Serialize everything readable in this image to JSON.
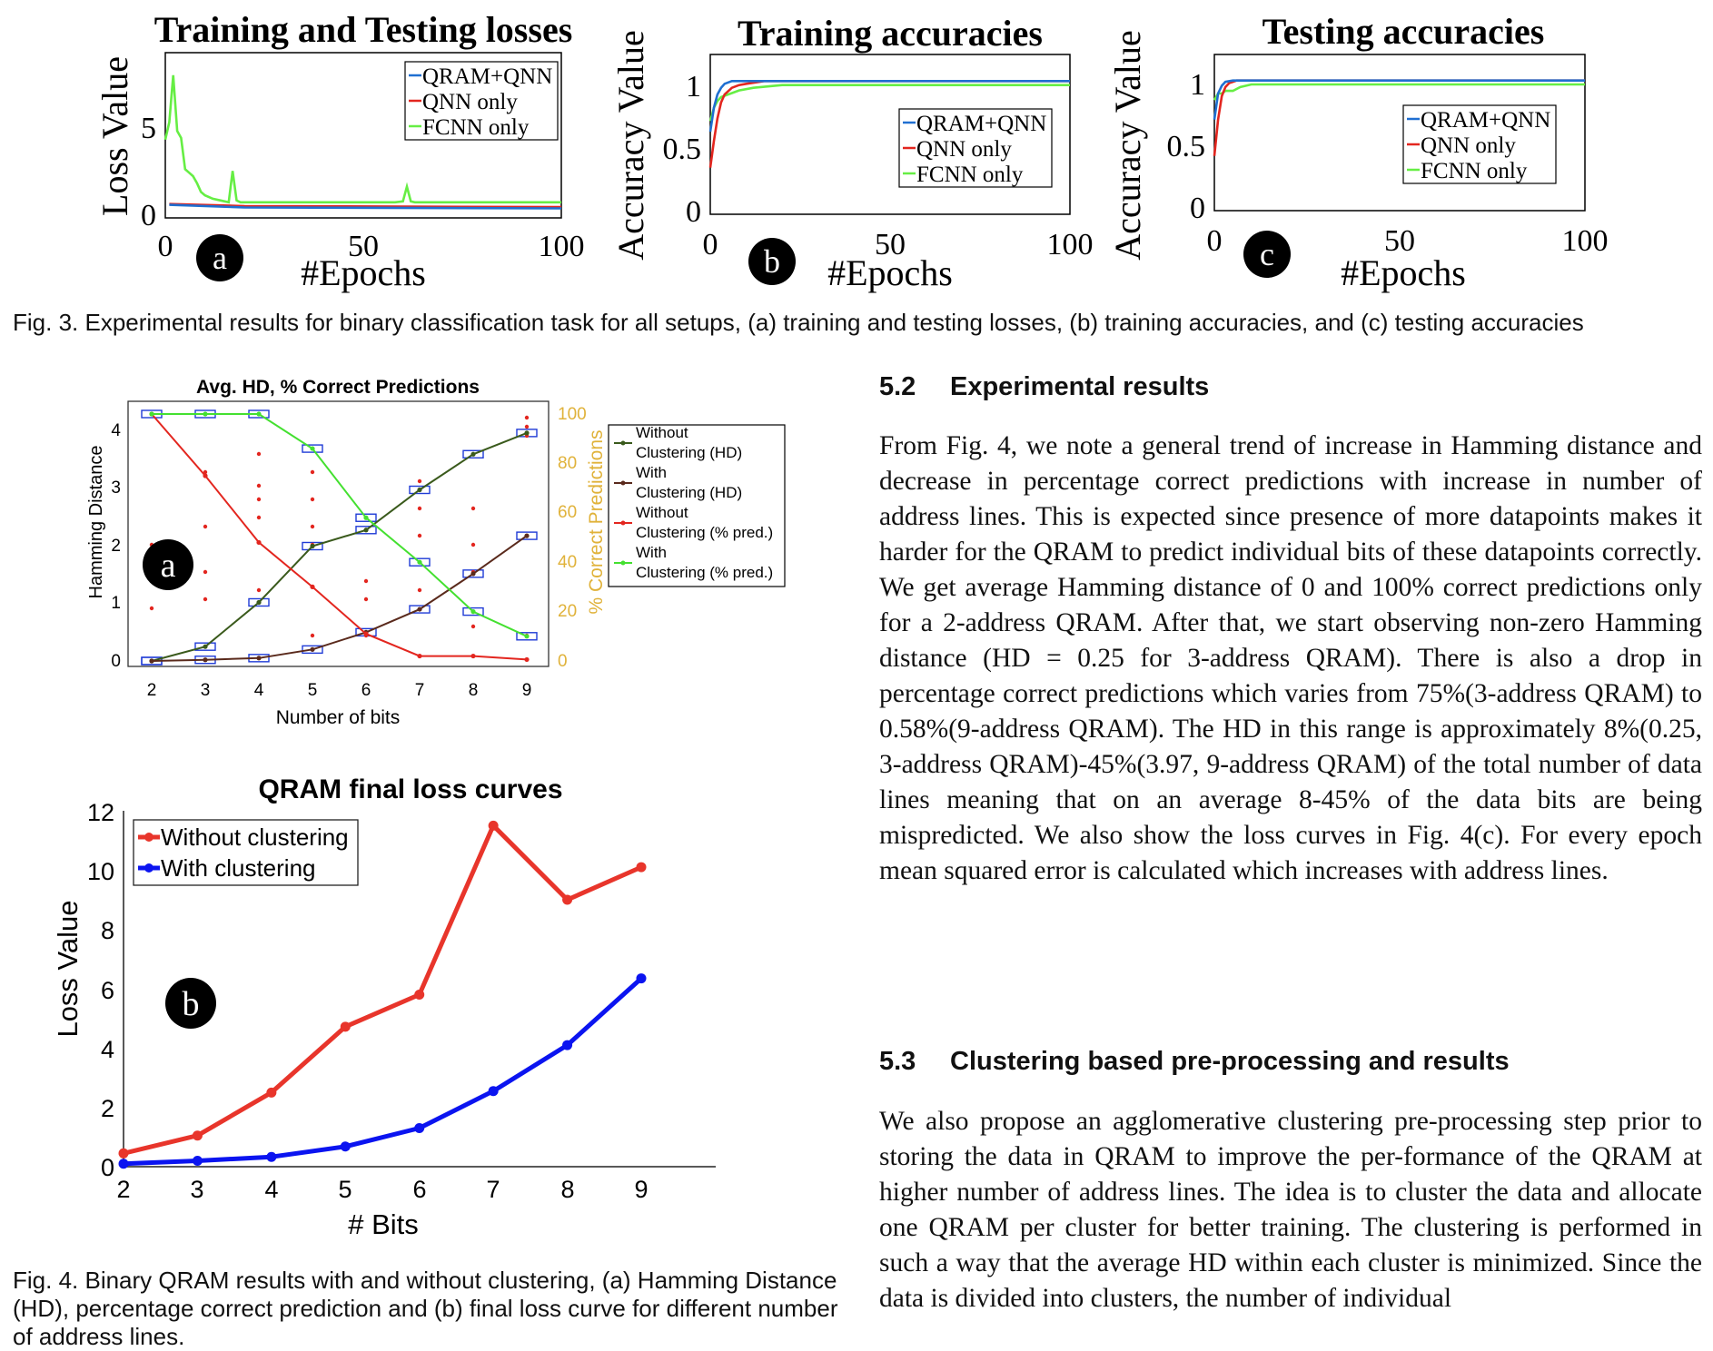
{
  "fig3": {
    "caption": "Fig. 3. Experimental results for binary classification task for all setups, (a) training and testing losses, (b) training accuracies, and (c) testing accuracies",
    "panels": [
      {
        "marker": "a",
        "title": "Training and Testing losses",
        "ylabel": "Loss Value",
        "xlabel": "#Epochs",
        "xticks": [
          "0",
          "50",
          "100"
        ],
        "yticks": [
          "0",
          "5"
        ]
      },
      {
        "marker": "b",
        "title": "Training accuracies",
        "ylabel": "Accuracy Value",
        "xlabel": "#Epochs",
        "xticks": [
          "0",
          "50",
          "100"
        ],
        "yticks": [
          "0",
          "0.5",
          "1"
        ]
      },
      {
        "marker": "c",
        "title": "Testing accuracies",
        "ylabel": "Accuracy Value",
        "xlabel": "#Epochs",
        "xticks": [
          "0",
          "50",
          "100"
        ],
        "yticks": [
          "0",
          "0.5",
          "1"
        ]
      }
    ],
    "legend": [
      "QRAM+QNN",
      "QNN only",
      "FCNN only"
    ],
    "colors": {
      "qram_qnn": "#1f6fd1",
      "qnn": "#e3261f",
      "fcnn": "#66ee44"
    }
  },
  "fig4": {
    "caption": "Fig. 4. Binary QRAM results with and without clustering, (a) Hamming Distance (HD), percentage correct prediction and (b) final loss curve for different number of address lines.",
    "a": {
      "marker": "a",
      "title": "Avg. HD, % Correct Predictions",
      "ylabel_left": "Hamming Distance",
      "ylabel_right": "% Correct Predictions",
      "xlabel": "Number of bits",
      "xticks": [
        "2",
        "3",
        "4",
        "5",
        "6",
        "7",
        "8",
        "9"
      ],
      "yticks_left": [
        "0",
        "1",
        "2",
        "3",
        "4"
      ],
      "yticks_right": [
        "0",
        "20",
        "40",
        "60",
        "80",
        "100"
      ],
      "legend": [
        {
          "line1": "Without",
          "line2": "Clustering (HD)"
        },
        {
          "line1": "With",
          "line2": "Clustering (HD)"
        },
        {
          "line1": "Without",
          "line2": "Clustering (% pred.)"
        },
        {
          "line1": "With",
          "line2": "Clustering (% pred.)"
        }
      ]
    },
    "b": {
      "marker": "b",
      "title": "QRAM final loss curves",
      "ylabel": "Loss Value",
      "xlabel": "# Bits",
      "xticks": [
        "2",
        "3",
        "4",
        "5",
        "6",
        "7",
        "8",
        "9"
      ],
      "yticks": [
        "0",
        "2",
        "4",
        "6",
        "8",
        "10",
        "12"
      ],
      "legend": [
        "Without clustering",
        "With clustering"
      ]
    }
  },
  "chart_data": [
    {
      "type": "line",
      "title": "Training and Testing losses",
      "xlabel": "#Epochs",
      "ylabel": "Loss Value",
      "xlim": [
        0,
        100
      ],
      "ylim": [
        0,
        9.5
      ],
      "legend_position": "top-right",
      "series": [
        {
          "name": "QRAM+QNN",
          "x": [
            1,
            20,
            100
          ],
          "values": [
            0.75,
            0.6,
            0.55
          ]
        },
        {
          "name": "QNN only",
          "x": [
            1,
            20,
            100
          ],
          "values": [
            0.8,
            0.68,
            0.62
          ]
        },
        {
          "name": "FCNN only",
          "x": [
            0,
            1,
            2,
            3,
            4,
            5,
            6,
            7,
            8,
            9,
            10,
            12,
            14,
            16,
            17,
            18,
            19,
            20,
            58,
            60,
            61,
            62,
            63,
            100
          ],
          "values": [
            4.5,
            5.5,
            8.2,
            5.0,
            4.6,
            2.8,
            2.6,
            2.4,
            2.0,
            1.5,
            1.3,
            1.1,
            1.0,
            0.9,
            2.7,
            1.0,
            0.9,
            0.9,
            0.9,
            0.95,
            1.8,
            0.95,
            0.9,
            0.9
          ]
        }
      ]
    },
    {
      "type": "line",
      "title": "Training accuracies",
      "xlabel": "#Epochs",
      "ylabel": "Accuracy Value",
      "xlim": [
        0,
        100
      ],
      "ylim": [
        0,
        1.2
      ],
      "legend_position": "bottom-right",
      "series": [
        {
          "name": "QRAM+QNN",
          "x": [
            0,
            1,
            2,
            3,
            4,
            6,
            8,
            100
          ],
          "values": [
            0.62,
            0.8,
            0.9,
            0.95,
            0.98,
            1.0,
            1.0,
            1.0
          ]
        },
        {
          "name": "QNN only",
          "x": [
            0,
            1,
            2,
            3,
            4,
            6,
            8,
            10,
            15,
            100
          ],
          "values": [
            0.35,
            0.55,
            0.72,
            0.84,
            0.9,
            0.95,
            0.97,
            0.98,
            1.0,
            1.0
          ]
        },
        {
          "name": "FCNN only",
          "x": [
            0,
            1,
            2,
            3,
            5,
            8,
            12,
            20,
            100
          ],
          "values": [
            0.7,
            0.8,
            0.85,
            0.88,
            0.9,
            0.93,
            0.95,
            0.97,
            0.97
          ]
        }
      ]
    },
    {
      "type": "line",
      "title": "Testing accuracies",
      "xlabel": "#Epochs",
      "ylabel": "Accuracy Value",
      "xlim": [
        0,
        100
      ],
      "ylim": [
        0,
        1.2
      ],
      "legend_position": "bottom-right",
      "series": [
        {
          "name": "QRAM+QNN",
          "x": [
            0,
            1,
            2,
            3,
            5,
            100
          ],
          "values": [
            0.7,
            0.9,
            0.96,
            0.99,
            1.0,
            1.0
          ]
        },
        {
          "name": "QNN only",
          "x": [
            0,
            1,
            2,
            3,
            4,
            5,
            6,
            8,
            100
          ],
          "values": [
            0.42,
            0.7,
            0.88,
            0.95,
            0.98,
            0.99,
            1.0,
            1.0,
            1.0
          ]
        },
        {
          "name": "FCNN only",
          "x": [
            0,
            1,
            2,
            3,
            5,
            7,
            10,
            100
          ],
          "values": [
            0.85,
            0.9,
            0.9,
            0.92,
            0.92,
            0.95,
            0.97,
            0.97
          ]
        }
      ]
    },
    {
      "type": "line",
      "title": "Avg. HD, % Correct Predictions",
      "xlabel": "Number of bits",
      "ylabel": "Hamming Distance",
      "ylabel_right": "% Correct Predictions",
      "categories": [
        2,
        3,
        4,
        5,
        6,
        7,
        8,
        9
      ],
      "ylim": [
        -0.1,
        4.5
      ],
      "ylim_right": [
        -2.2,
        102
      ],
      "legend_position": "right",
      "series": [
        {
          "name": "Without Clustering (HD)",
          "axis": "left",
          "color": "#3a5a1c",
          "values": [
            0,
            0.25,
            1.02,
            2.0,
            2.28,
            2.98,
            3.6,
            3.97
          ]
        },
        {
          "name": "With Clustering (HD)",
          "axis": "left",
          "color": "#5a2a1c",
          "values": [
            0,
            0.02,
            0.05,
            0.2,
            0.5,
            0.9,
            1.52,
            2.18
          ]
        },
        {
          "name": "Without Clustering (% pred.)",
          "axis": "right",
          "color": "#e3261f",
          "values": [
            100,
            75,
            48,
            30,
            11,
            2,
            2,
            0.58
          ]
        },
        {
          "name": "With Clustering (% pred.)",
          "axis": "right",
          "color": "#44e030",
          "values": [
            100,
            100,
            100,
            86,
            58,
            40,
            20,
            10
          ]
        }
      ]
    },
    {
      "type": "line",
      "title": "QRAM final loss curves",
      "xlabel": "# Bits",
      "ylabel": "Loss Value",
      "categories": [
        2,
        3,
        4,
        5,
        6,
        7,
        8,
        9
      ],
      "xlim": [
        2,
        10
      ],
      "ylim": [
        0,
        12
      ],
      "legend_position": "top-left",
      "series": [
        {
          "name": "Without clustering",
          "color": "#e8352b",
          "values": [
            0.45,
            1.05,
            2.5,
            4.72,
            5.8,
            11.5,
            9.0,
            10.1
          ]
        },
        {
          "name": "With clustering",
          "color": "#0b14f0",
          "values": [
            0.1,
            0.2,
            0.33,
            0.68,
            1.3,
            2.55,
            4.1,
            6.35
          ]
        }
      ]
    }
  ],
  "sections": [
    {
      "number": "5.2",
      "heading": "Experimental results",
      "paragraph": "From Fig. 4, we note a general trend of increase in Hamming distance and decrease in percentage correct predictions with increase in number of address lines. This is expected since presence of more datapoints makes it harder for the QRAM to predict individual bits of these datapoints correctly. We get average Hamming distance of 0 and 100% correct predictions only for a 2-address QRAM. After that, we start observing non-zero Hamming distance (HD = 0.25 for 3-address QRAM). There is also a drop in percentage correct predictions which varies from 75%(3-address QRAM) to 0.58%(9-address QRAM). The HD in this range is approximately 8%(0.25, 3-address QRAM)-45%(3.97, 9-address QRAM) of the total number of data lines meaning that on an average 8-45% of the data bits are being mispredicted. We also show the loss curves in Fig. 4(c). For every epoch mean squared error is calculated which increases with address lines."
    },
    {
      "number": "5.3",
      "heading": "Clustering based pre-processing and results",
      "paragraph": "We also propose an agglomerative clustering pre-processing step prior to storing the data in QRAM to improve the per-formance of the QRAM at higher number of address lines. The idea is to cluster the data and allocate one QRAM per cluster for better training. The clustering is performed in such a way that the average HD within each cluster is minimized. Since the data is divided into clusters, the number of individual"
    }
  ]
}
